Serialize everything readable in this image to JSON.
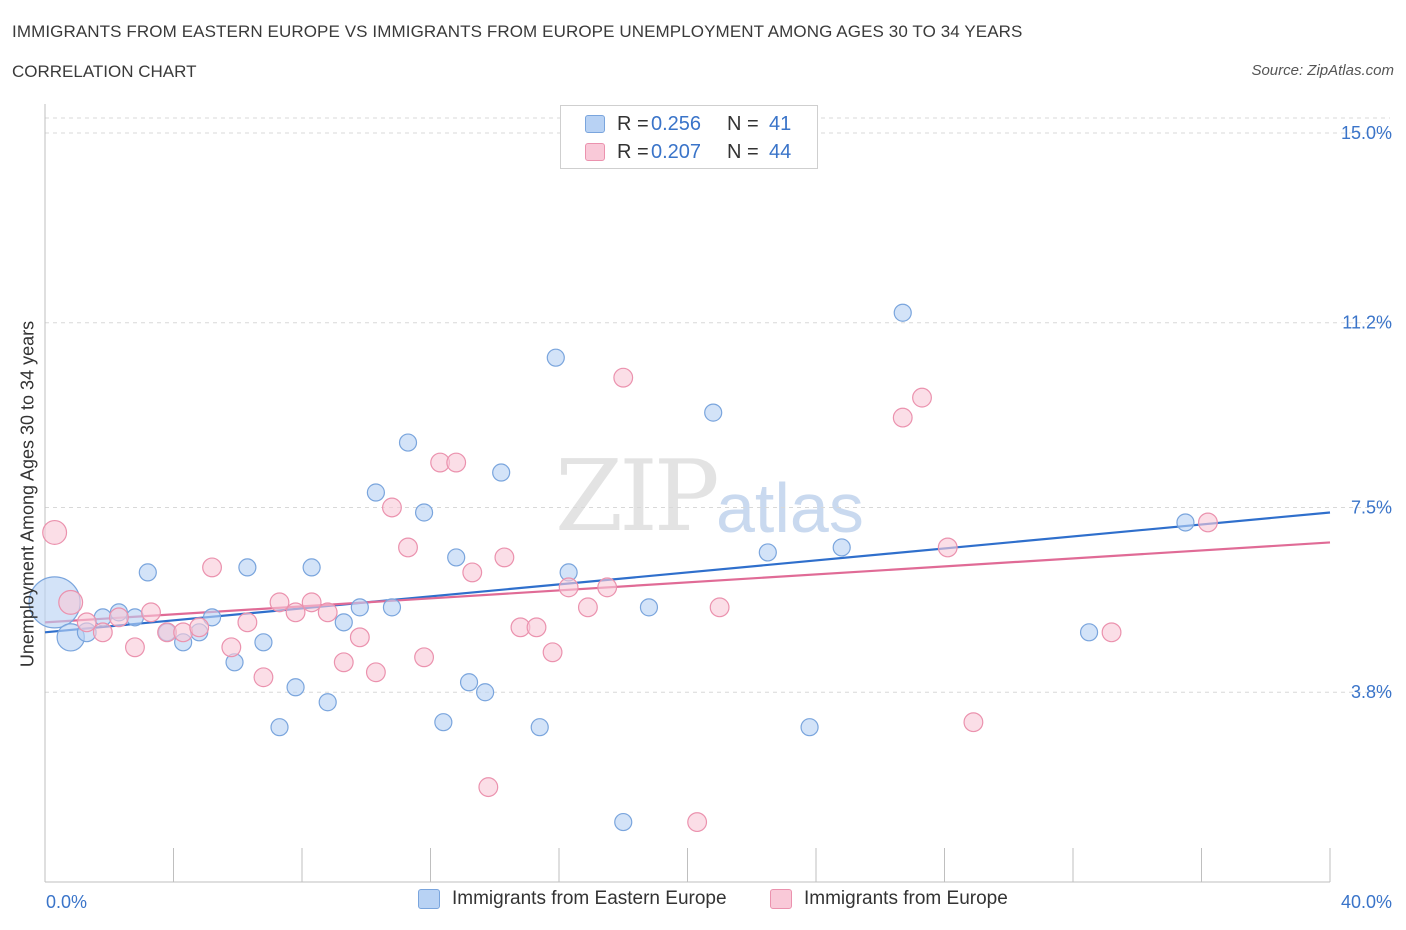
{
  "header": {
    "title": "IMMIGRANTS FROM EASTERN EUROPE VS IMMIGRANTS FROM EUROPE UNEMPLOYMENT AMONG AGES 30 TO 34 YEARS",
    "subtitle": "CORRELATION CHART",
    "source": "Source: ZipAtlas.com"
  },
  "watermark": {
    "zip": "ZIP",
    "atlas": "atlas"
  },
  "legend": {
    "r_label": "R =",
    "n_label": "N =",
    "rows": [
      {
        "r": "0.256",
        "n": "41"
      },
      {
        "r": "0.207",
        "n": "44"
      }
    ]
  },
  "colors": {
    "blue_fill": "#b8d2f4",
    "blue_stroke": "#7aa5dd",
    "blue_line": "#2f6fcc",
    "pink_fill": "#f9c9d8",
    "pink_stroke": "#eb92ae",
    "pink_line": "#e06b96",
    "tick_text": "#3a74c9",
    "grid": "#d8d8d8"
  },
  "chart_data": {
    "type": "scatter",
    "title": "IMMIGRANTS FROM EASTERN EUROPE VS IMMIGRANTS FROM EUROPE UNEMPLOYMENT AMONG AGES 30 TO 34 YEARS",
    "xlabel": "",
    "ylabel": "Unemployment Among Ages 30 to 34 years",
    "xlim": [
      0,
      40
    ],
    "ylim": [
      0,
      15.3
    ],
    "x_tick_labels": [
      "0.0%",
      "40.0%"
    ],
    "y_ticks": [
      3.8,
      7.5,
      11.2,
      15.0
    ],
    "y_tick_labels": [
      "3.8%",
      "7.5%",
      "11.2%",
      "15.0%"
    ],
    "grid": "horizontal dashed",
    "legend_position": "top-center",
    "series": [
      {
        "name": "Immigrants from Eastern Europe",
        "color": "blue",
        "trend": [
          [
            0,
            5.0
          ],
          [
            40,
            7.4
          ]
        ],
        "points": [
          [
            0.3,
            5.6,
            30
          ],
          [
            0.8,
            4.9,
            16
          ],
          [
            1.3,
            5.0,
            11
          ],
          [
            1.8,
            5.3,
            10
          ],
          [
            2.3,
            5.4,
            10
          ],
          [
            2.8,
            5.3,
            10
          ],
          [
            3.2,
            6.2,
            10
          ],
          [
            3.8,
            5.0,
            10
          ],
          [
            4.3,
            4.8,
            10
          ],
          [
            4.8,
            5.0,
            10
          ],
          [
            5.2,
            5.3,
            10
          ],
          [
            5.9,
            4.4,
            10
          ],
          [
            6.3,
            6.3,
            10
          ],
          [
            6.8,
            4.8,
            10
          ],
          [
            7.3,
            3.1,
            10
          ],
          [
            7.8,
            3.9,
            10
          ],
          [
            8.3,
            6.3,
            10
          ],
          [
            8.8,
            3.6,
            10
          ],
          [
            9.3,
            5.2,
            10
          ],
          [
            9.8,
            5.5,
            10
          ],
          [
            10.3,
            7.8,
            10
          ],
          [
            10.8,
            5.5,
            10
          ],
          [
            11.3,
            8.8,
            10
          ],
          [
            11.8,
            7.4,
            10
          ],
          [
            12.4,
            3.2,
            10
          ],
          [
            12.8,
            6.5,
            10
          ],
          [
            13.2,
            4.0,
            10
          ],
          [
            13.7,
            3.8,
            10
          ],
          [
            14.2,
            8.2,
            10
          ],
          [
            15.4,
            3.1,
            10
          ],
          [
            15.9,
            10.5,
            10
          ],
          [
            16.3,
            6.2,
            10
          ],
          [
            18.0,
            1.2,
            10
          ],
          [
            18.8,
            5.5,
            10
          ],
          [
            20.8,
            9.4,
            10
          ],
          [
            22.5,
            6.6,
            10
          ],
          [
            23.8,
            3.1,
            10
          ],
          [
            24.8,
            6.7,
            10
          ],
          [
            26.7,
            11.4,
            10
          ],
          [
            32.5,
            5.0,
            10
          ],
          [
            35.5,
            7.2,
            10
          ]
        ]
      },
      {
        "name": "Immigrants from Europe",
        "color": "pink",
        "trend": [
          [
            0,
            5.2
          ],
          [
            40,
            6.8
          ]
        ],
        "points": [
          [
            0.3,
            7.0,
            14
          ],
          [
            0.8,
            5.6,
            14
          ],
          [
            1.3,
            5.2,
            11
          ],
          [
            1.8,
            5.0,
            11
          ],
          [
            2.3,
            5.3,
            11
          ],
          [
            2.8,
            4.7,
            11
          ],
          [
            3.3,
            5.4,
            11
          ],
          [
            3.8,
            5.0,
            11
          ],
          [
            4.3,
            5.0,
            11
          ],
          [
            4.8,
            5.1,
            11
          ],
          [
            5.2,
            6.3,
            11
          ],
          [
            5.8,
            4.7,
            11
          ],
          [
            6.3,
            5.2,
            11
          ],
          [
            6.8,
            4.1,
            11
          ],
          [
            7.3,
            5.6,
            11
          ],
          [
            7.8,
            5.4,
            11
          ],
          [
            8.3,
            5.6,
            11
          ],
          [
            8.8,
            5.4,
            11
          ],
          [
            9.3,
            4.4,
            11
          ],
          [
            9.8,
            4.9,
            11
          ],
          [
            10.3,
            4.2,
            11
          ],
          [
            10.8,
            7.5,
            11
          ],
          [
            11.3,
            6.7,
            11
          ],
          [
            11.8,
            4.5,
            11
          ],
          [
            12.3,
            8.4,
            11
          ],
          [
            12.8,
            8.4,
            11
          ],
          [
            13.3,
            6.2,
            11
          ],
          [
            13.8,
            1.9,
            11
          ],
          [
            14.3,
            6.5,
            11
          ],
          [
            14.8,
            5.1,
            11
          ],
          [
            15.3,
            5.1,
            11
          ],
          [
            15.8,
            4.6,
            11
          ],
          [
            16.3,
            5.9,
            11
          ],
          [
            16.9,
            5.5,
            11
          ],
          [
            17.5,
            5.9,
            11
          ],
          [
            18.0,
            10.1,
            11
          ],
          [
            20.3,
            1.2,
            11
          ],
          [
            21.0,
            5.5,
            11
          ],
          [
            26.7,
            9.3,
            11
          ],
          [
            27.3,
            9.7,
            11
          ],
          [
            28.1,
            6.7,
            11
          ],
          [
            28.9,
            3.2,
            11
          ],
          [
            33.2,
            5.0,
            11
          ],
          [
            36.2,
            7.2,
            11
          ]
        ]
      }
    ]
  }
}
